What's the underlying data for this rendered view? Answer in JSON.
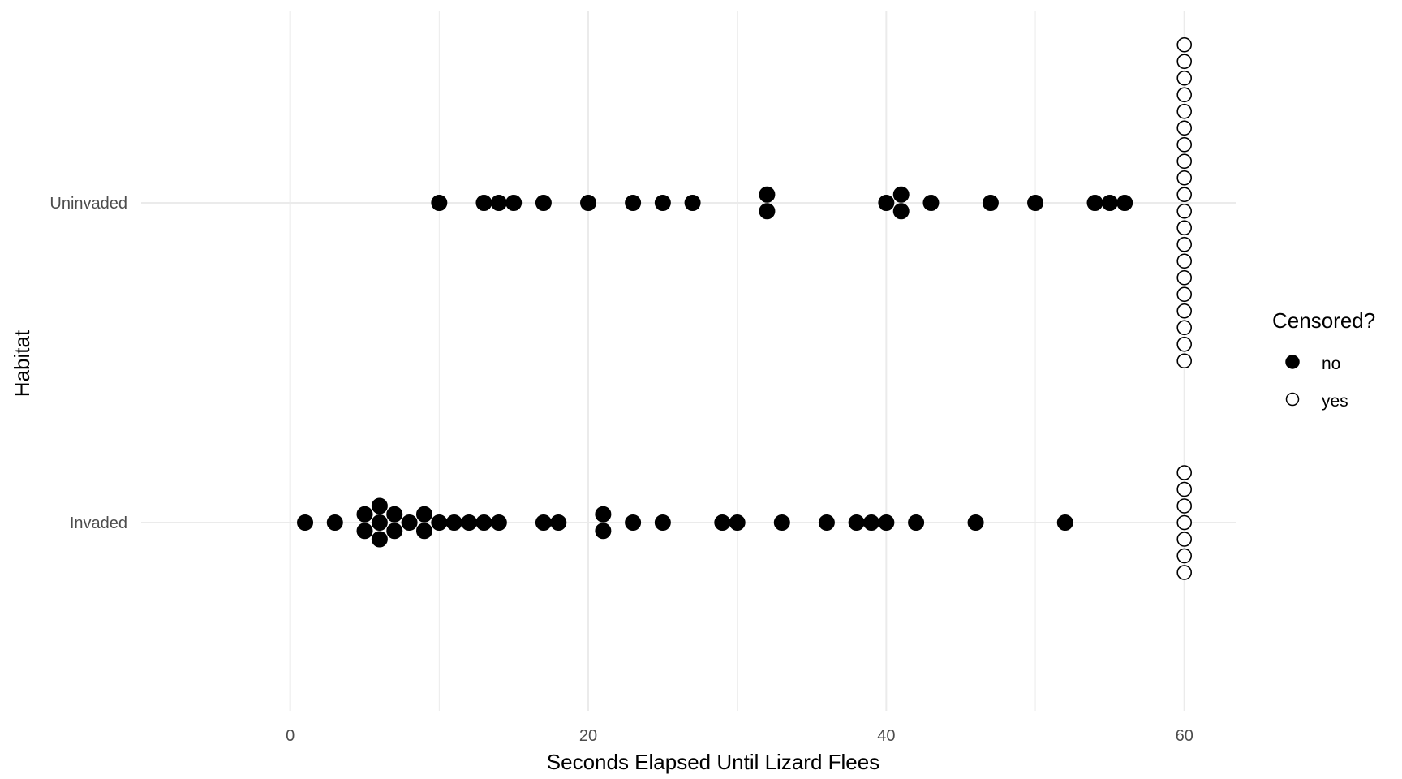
{
  "chart_data": {
    "type": "scatter",
    "title": "",
    "xlabel": "Seconds Elapsed Until Lizard Flees",
    "ylabel": "Habitat",
    "xlim": [
      -10,
      63.5
    ],
    "x_ticks": [
      "0",
      "20",
      "40",
      "60"
    ],
    "categories": [
      "Invaded",
      "Uninvaded"
    ],
    "grid": true,
    "legend": {
      "title": "Censored?",
      "placement": "right",
      "entries": [
        "no",
        "yes"
      ]
    },
    "colors": {
      "grid": "#ebebeb",
      "point": "#000000",
      "axis_text": "#4d4d4d"
    },
    "series": [
      {
        "name": "no",
        "marker": "filled-circle",
        "points": [
          {
            "habitat": "Uninvaded",
            "x": [
              10,
              13,
              14,
              15,
              17,
              20,
              23,
              25,
              27,
              32,
              32,
              40,
              41,
              41,
              43,
              47,
              50,
              54,
              55,
              56
            ]
          },
          {
            "habitat": "Invaded",
            "x": [
              1,
              3,
              5,
              5,
              6,
              6,
              6,
              7,
              7,
              8,
              9,
              9,
              10,
              11,
              12,
              13,
              14,
              17,
              18,
              21,
              21,
              23,
              25,
              29,
              30,
              33,
              36,
              38,
              39,
              40,
              42,
              46,
              52
            ]
          }
        ]
      },
      {
        "name": "yes",
        "marker": "open-circle",
        "points": [
          {
            "habitat": "Uninvaded",
            "x": [
              60,
              60,
              60,
              60,
              60,
              60,
              60,
              60,
              60,
              60,
              60,
              60,
              60,
              60,
              60,
              60,
              60,
              60,
              60,
              60
            ]
          },
          {
            "habitat": "Invaded",
            "x": [
              60,
              60,
              60,
              60,
              60,
              60,
              60
            ]
          }
        ]
      }
    ]
  }
}
